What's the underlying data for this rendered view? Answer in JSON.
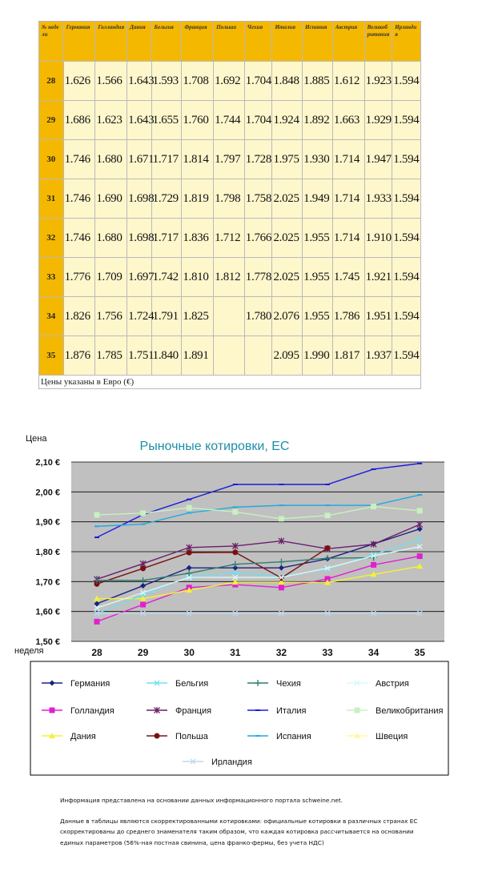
{
  "table": {
    "headers": [
      "№ недели",
      "Германия",
      "Голландия",
      "Дания",
      "Бельгия",
      "Франция",
      "Польша",
      "Чехия",
      "Италия",
      "Испания",
      "Австрия",
      "Великобритания",
      "Ирландия"
    ],
    "rows": [
      [
        "28",
        "1.626",
        "1.566",
        "1.643",
        "1.593",
        "1.708",
        "1.692",
        "1.704",
        "1.848",
        "1.885",
        "1.612",
        "1.923",
        "1.594"
      ],
      [
        "29",
        "1.686",
        "1.623",
        "1.643",
        "1.655",
        "1.760",
        "1.744",
        "1.704",
        "1.924",
        "1.892",
        "1.663",
        "1.929",
        "1.594"
      ],
      [
        "30",
        "1.746",
        "1.680",
        "1.671",
        "1.717",
        "1.814",
        "1.797",
        "1.728",
        "1.975",
        "1.930",
        "1.714",
        "1.947",
        "1.594"
      ],
      [
        "31",
        "1.746",
        "1.690",
        "1.698",
        "1.729",
        "1.819",
        "1.798",
        "1.758",
        "2.025",
        "1.949",
        "1.714",
        "1.933",
        "1.594"
      ],
      [
        "32",
        "1.746",
        "1.680",
        "1.698",
        "1.717",
        "1.836",
        "1.712",
        "1.766",
        "2.025",
        "1.955",
        "1.714",
        "1.910",
        "1.594"
      ],
      [
        "33",
        "1.776",
        "1.709",
        "1.697",
        "1.742",
        "1.810",
        "1.812",
        "1.778",
        "2.025",
        "1.955",
        "1.745",
        "1.921",
        "1.594"
      ],
      [
        "34",
        "1.826",
        "1.756",
        "1.724",
        "1.791",
        "1.825",
        "",
        "1.780",
        "2.076",
        "1.955",
        "1.786",
        "1.951",
        "1.594"
      ],
      [
        "35",
        "1.876",
        "1.785",
        "1.751",
        "1.840",
        "1.891",
        "",
        "",
        "2.095",
        "1.990",
        "1.817",
        "1.937",
        "1.594"
      ]
    ],
    "footer": "Цены указаны в Евро (€)"
  },
  "chart_data": {
    "type": "line",
    "title": "Рыночные котировки, ЕС",
    "ylabel": "Цена",
    "xlabel": "неделя",
    "categories": [
      "28",
      "29",
      "30",
      "31",
      "32",
      "33",
      "34",
      "35"
    ],
    "ylim": [
      1.5,
      2.1
    ],
    "yticks": [
      "1,50 €",
      "1,60 €",
      "1,70 €",
      "1,80 €",
      "1,90 €",
      "2,00 €",
      "2,10 €"
    ],
    "grid": true,
    "legend_position": "bottom",
    "series": [
      {
        "name": "Германия",
        "color": "#1a237e",
        "marker": "diamond",
        "values": [
          1.626,
          1.686,
          1.746,
          1.746,
          1.746,
          1.776,
          1.826,
          1.876
        ]
      },
      {
        "name": "Голландия",
        "color": "#e020d0",
        "marker": "square",
        "values": [
          1.566,
          1.623,
          1.68,
          1.69,
          1.68,
          1.709,
          1.756,
          1.785
        ]
      },
      {
        "name": "Дания",
        "color": "#f5f03a",
        "marker": "triangle",
        "values": [
          1.643,
          1.643,
          1.671,
          1.698,
          1.698,
          1.697,
          1.724,
          1.751
        ]
      },
      {
        "name": "Бельгия",
        "color": "#6fe0f0",
        "marker": "x",
        "values": [
          1.593,
          1.655,
          1.717,
          1.729,
          1.717,
          1.742,
          1.791,
          1.84
        ]
      },
      {
        "name": "Франция",
        "color": "#6a1f6a",
        "marker": "star",
        "values": [
          1.708,
          1.76,
          1.814,
          1.819,
          1.836,
          1.81,
          1.825,
          1.891
        ]
      },
      {
        "name": "Польша",
        "color": "#7a1010",
        "marker": "circle",
        "values": [
          1.692,
          1.744,
          1.797,
          1.798,
          1.712,
          1.812,
          null,
          null
        ]
      },
      {
        "name": "Чехия",
        "color": "#2e7d70",
        "marker": "plus",
        "values": [
          1.704,
          1.704,
          1.728,
          1.758,
          1.766,
          1.778,
          1.78,
          null
        ]
      },
      {
        "name": "Италия",
        "color": "#1a1ae0",
        "marker": "dash",
        "values": [
          1.848,
          1.924,
          1.975,
          2.025,
          2.025,
          2.025,
          2.076,
          2.095
        ]
      },
      {
        "name": "Испания",
        "color": "#22aadd",
        "marker": "dash",
        "values": [
          1.885,
          1.892,
          1.93,
          1.949,
          1.955,
          1.955,
          1.955,
          1.99
        ]
      },
      {
        "name": "Австрия",
        "color": "#d8f8f8",
        "marker": "x",
        "values": [
          1.612,
          1.663,
          1.714,
          1.714,
          1.714,
          1.745,
          1.786,
          1.817
        ]
      },
      {
        "name": "Великобритания",
        "color": "#c8f0c0",
        "marker": "square",
        "values": [
          1.923,
          1.929,
          1.947,
          1.933,
          1.91,
          1.921,
          1.951,
          1.937
        ]
      },
      {
        "name": "Швеция",
        "color": "#fff8a0",
        "marker": "triangle",
        "values": [
          null,
          null,
          null,
          null,
          null,
          null,
          null,
          null
        ]
      },
      {
        "name": "Ирландия",
        "color": "#c0d8f0",
        "marker": "x",
        "values": [
          1.594,
          1.594,
          1.594,
          1.594,
          1.594,
          1.594,
          1.594,
          1.594
        ]
      }
    ]
  },
  "notes": {
    "source": "Информация представлена на основании данных информационного портала schweine.net.",
    "method": "Данные в таблицы являются скорректированными котировками: официальные котировки в различных странах ЕС скорректированы до среднего знаменателя таким образом, что каждая котировка рассчитывается на основании единых параметров (56%-ная постная свинина, цена франко-фермы, без учета НДС)"
  }
}
